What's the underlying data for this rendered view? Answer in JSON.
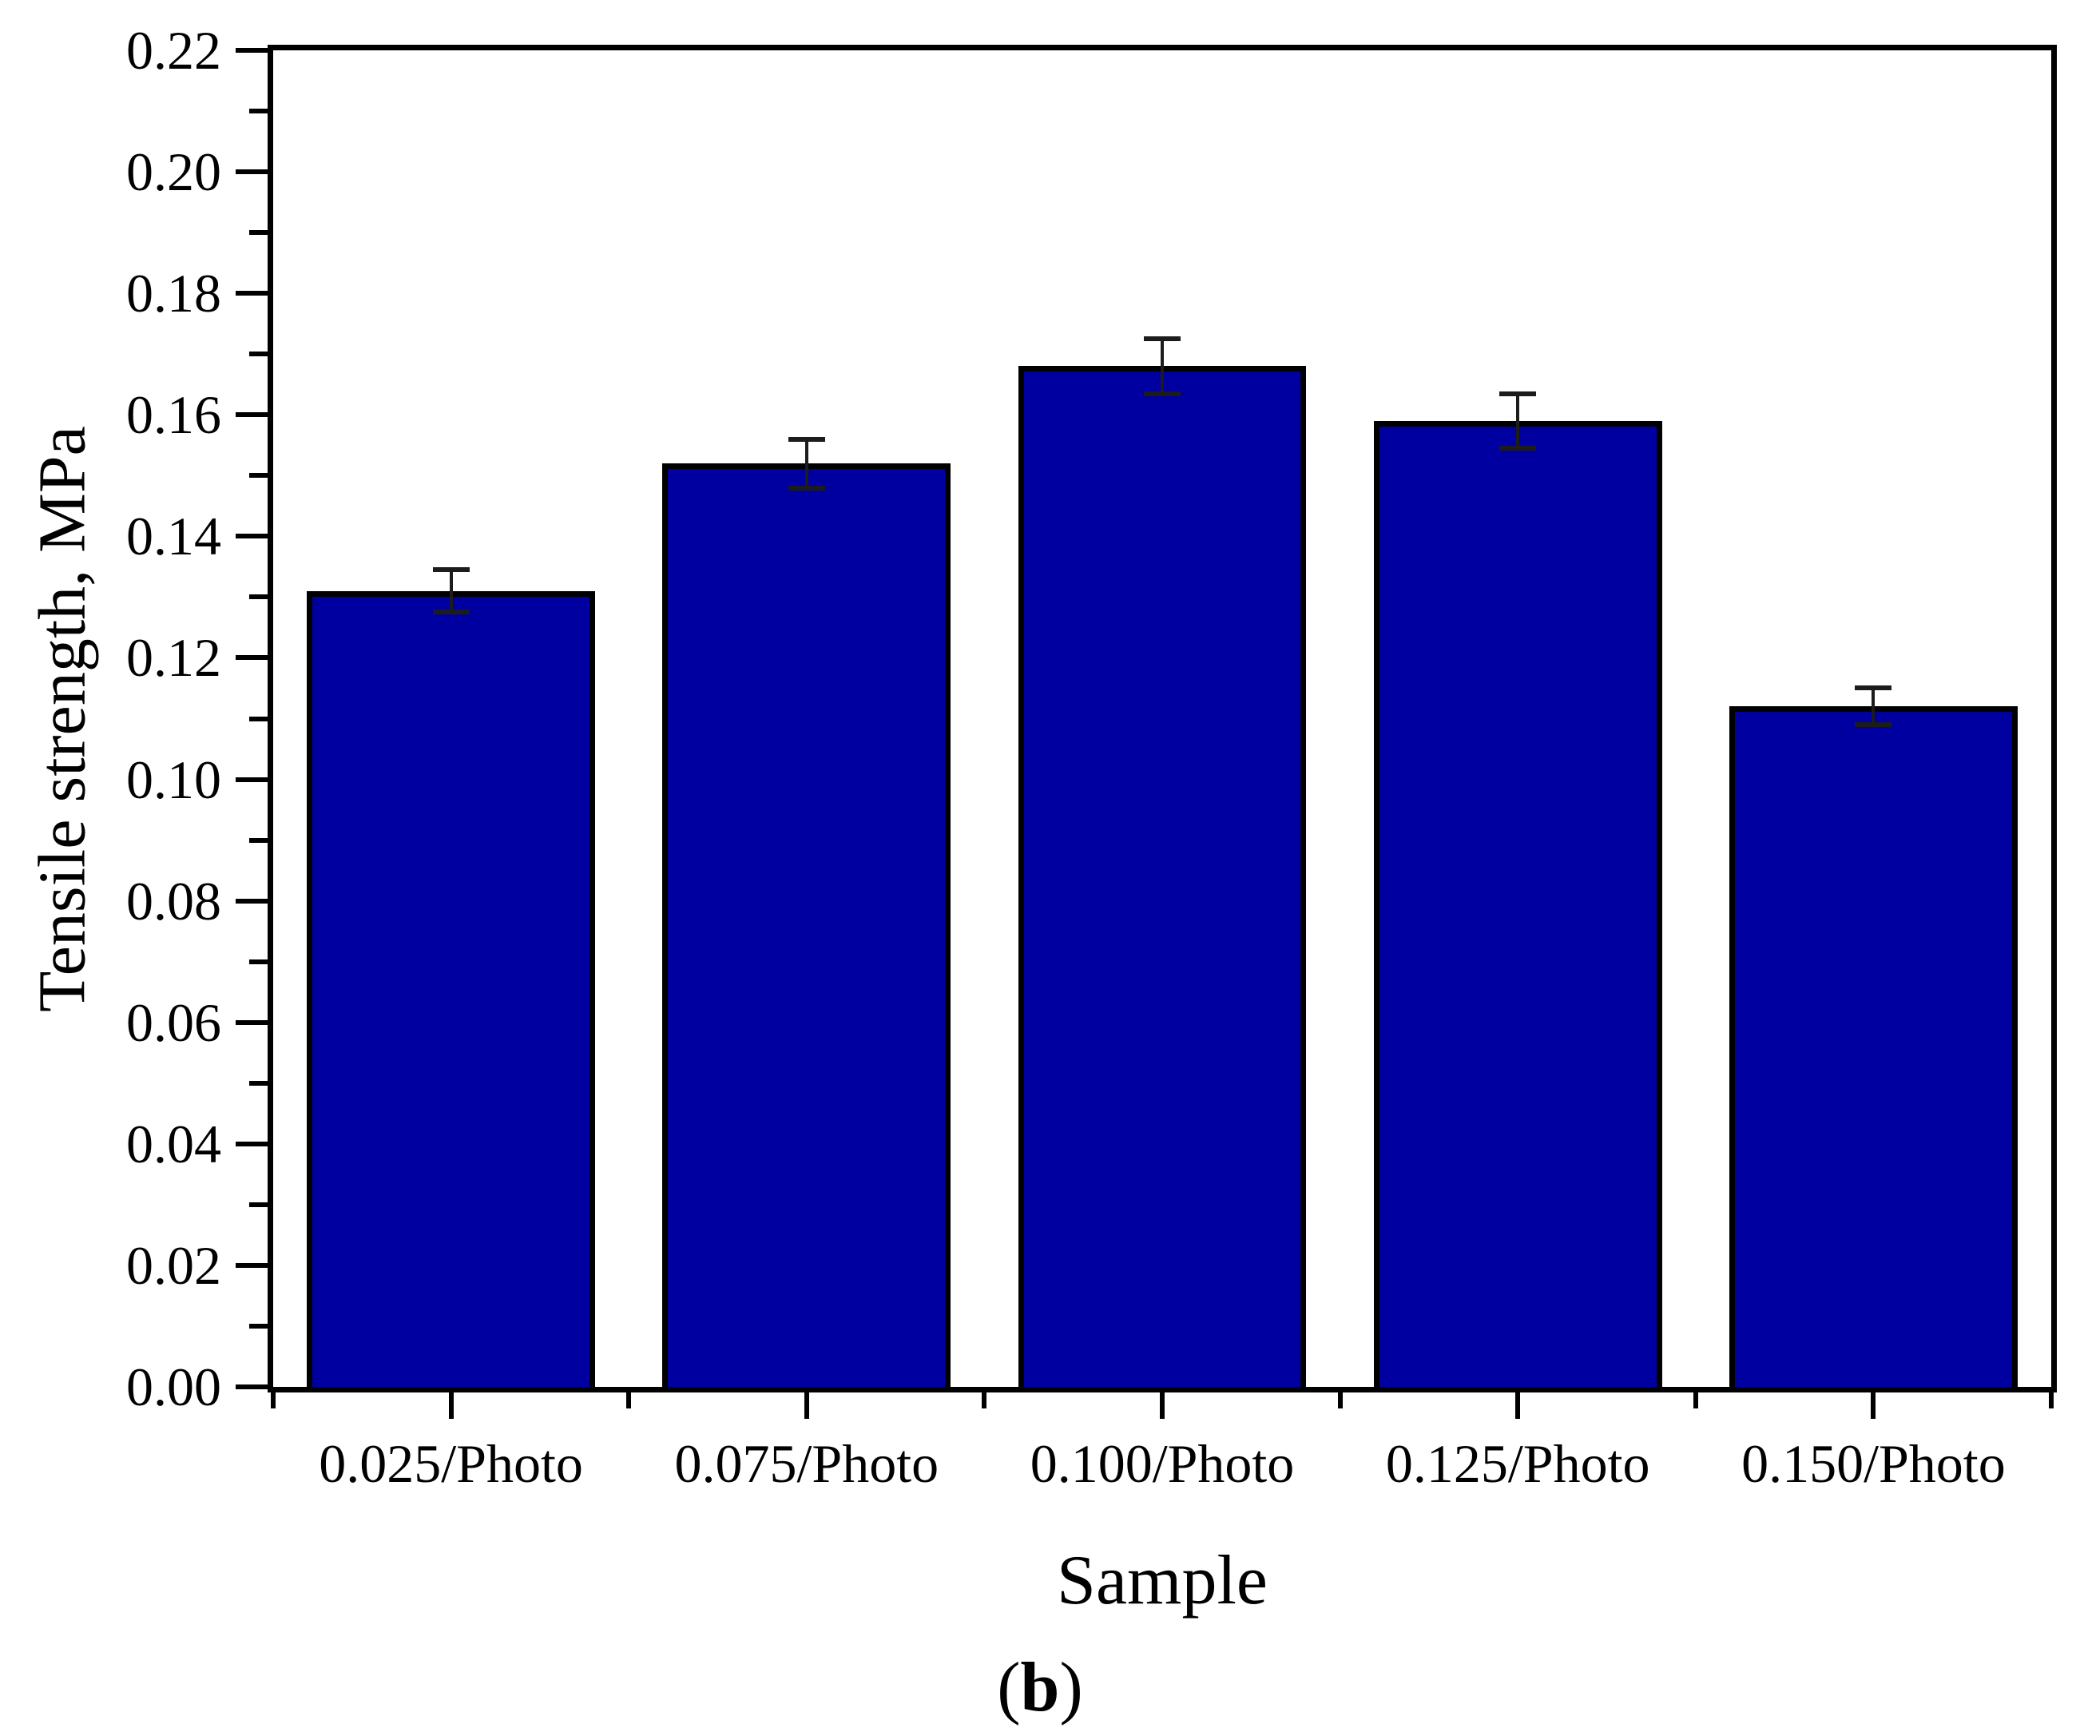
{
  "figure": {
    "background": "#ffffff",
    "caption": {
      "prefix": "(",
      "letter": "b",
      "suffix": ")"
    }
  },
  "chart_data": {
    "type": "bar",
    "title": "",
    "xlabel": "Sample",
    "ylabel": "Tensile strength, MPa",
    "categories": [
      "0.025/Photo",
      "0.075/Photo",
      "0.100/Photo",
      "0.125/Photo",
      "0.150/Photo"
    ],
    "values": [
      0.131,
      0.152,
      0.168,
      0.159,
      0.112
    ],
    "errors": [
      0.0035,
      0.004,
      0.0045,
      0.0045,
      0.003
    ],
    "ylim": [
      0.0,
      0.22
    ],
    "y_major_step": 0.02,
    "y_minor_step": 0.01,
    "y_tick_labels": [
      "0.00",
      "0.02",
      "0.04",
      "0.06",
      "0.08",
      "0.10",
      "0.12",
      "0.14",
      "0.16",
      "0.18",
      "0.20",
      "0.22"
    ],
    "bar_color": "#0000A0",
    "bar_border_color": "#000000",
    "error_bar_color": "#1c1c1c",
    "bar_width_fraction": 0.81,
    "grid": false,
    "legend": null
  }
}
